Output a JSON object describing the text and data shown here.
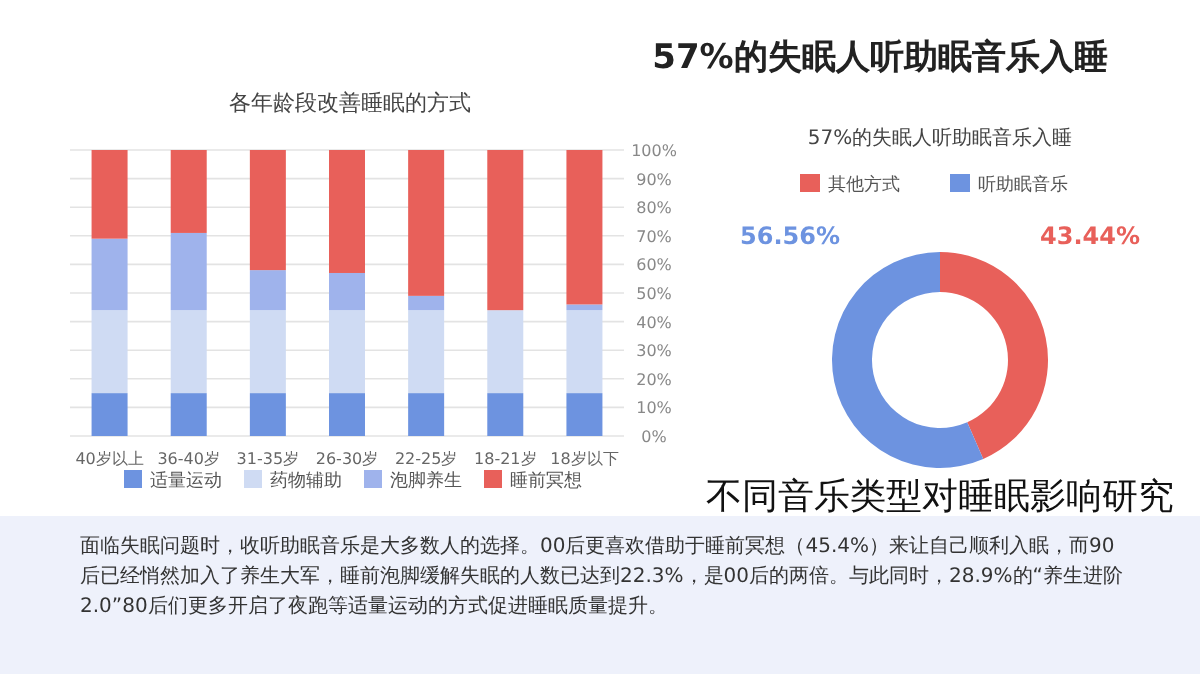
{
  "chart_data": [
    {
      "type": "bar",
      "title": "各年龄段改善睡眠的方式",
      "categories": [
        "40岁以上",
        "36-40岁",
        "31-35岁",
        "26-30岁",
        "22-25岁",
        "18-21岁",
        "18岁以下"
      ],
      "stacked": true,
      "series": [
        {
          "name": "适量运动",
          "color": "#6d93e0",
          "values": [
            15,
            15,
            15,
            15,
            15,
            15,
            15
          ]
        },
        {
          "name": "药物辅助",
          "color": "#cfdbf3",
          "values": [
            29,
            29,
            29,
            29,
            29,
            29,
            29
          ]
        },
        {
          "name": "泡脚养生",
          "color": "#9fb3ec",
          "values": [
            25,
            27,
            14,
            13,
            5,
            0,
            2
          ]
        },
        {
          "name": "睡前冥想",
          "color": "#e8605a",
          "values": [
            31,
            29,
            42,
            43,
            51,
            56,
            54
          ]
        }
      ],
      "ylim": [
        0,
        100
      ],
      "yticks": [
        {
          "value": 0,
          "label": "0%"
        },
        {
          "value": 10,
          "label": "10%"
        },
        {
          "value": 20,
          "label": "20%"
        },
        {
          "value": 30,
          "label": "30%"
        },
        {
          "value": 40,
          "label": "40%"
        },
        {
          "value": 50,
          "label": "50%"
        },
        {
          "value": 60,
          "label": "60%"
        },
        {
          "value": 70,
          "label": "70%"
        },
        {
          "value": 80,
          "label": "80%"
        },
        {
          "value": 90,
          "label": "90%"
        },
        {
          "value": 100,
          "label": "100%"
        }
      ],
      "grid": "y",
      "legend": "bottom"
    },
    {
      "type": "donut",
      "title": "57%的失眠人听助眠音乐入睡",
      "categories": [
        "其他方式",
        "听助眠音乐"
      ],
      "values": [
        43.44,
        56.56
      ],
      "colors": [
        "#e8605a",
        "#6d93e0"
      ],
      "value_labels": [
        "43.44%",
        "56.56%"
      ],
      "legend": "top"
    },
    {
      "type": "other",
      "title": "57%的失眠人听助眠音乐入睡",
      "annotations": [
        "不同音乐类型对睡眠影响研究",
        "面临失眠问题时，收听助眠音乐是大多数人的选择。00后更喜欢借助于睡前冥想（45.4%）来让自己顺利入眠，而90后已经悄然加入了养生大军，睡前泡脚缓解失眠的人数已达到22.3%，是00后的两倍。与此同时，28.9%的“养生进阶2.0”80后们更多开启了夜跑等适量运动的方式促进睡眠质量提升。"
      ]
    }
  ]
}
